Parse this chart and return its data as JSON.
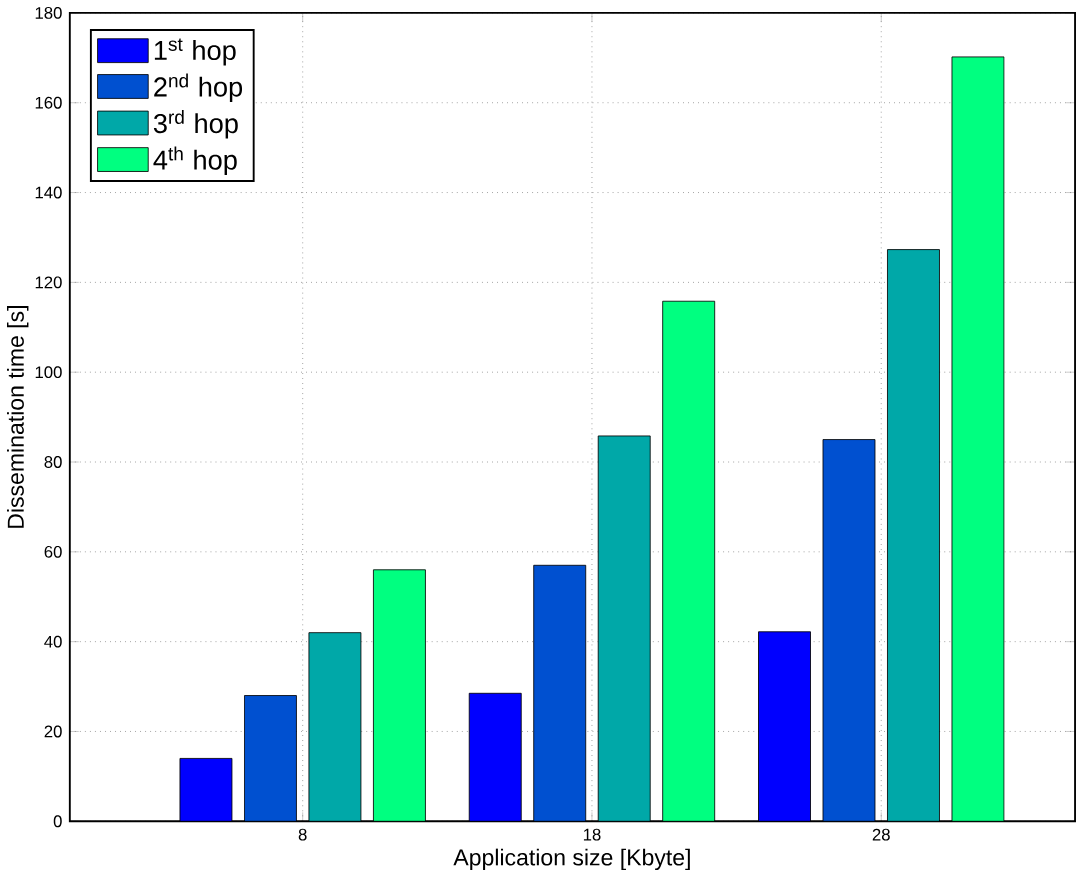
{
  "chart_data": {
    "type": "bar",
    "xlabel": "Application size [Kbyte]",
    "ylabel": "Dissemination time [s]",
    "categories": [
      "8",
      "18",
      "28"
    ],
    "series": [
      {
        "name": "1$^{st}$ hop",
        "color": "#0000ff",
        "values": [
          14,
          28.5,
          42.2
        ]
      },
      {
        "name": "2$^{nd}$ hop",
        "color": "#0050d0",
        "values": [
          28,
          57,
          85
        ]
      },
      {
        "name": "3$^{rd}$ hop",
        "color": "#00a8a8",
        "values": [
          42,
          85.8,
          127.3
        ]
      },
      {
        "name": "4$^{th}$ hop",
        "color": "#00ff80",
        "values": [
          56,
          115.8,
          170.2
        ]
      }
    ],
    "ylim": [
      0,
      180
    ],
    "yticks": [
      0,
      20,
      40,
      60,
      80,
      100,
      120,
      140,
      160,
      180
    ],
    "grid": true,
    "legend": "top left"
  }
}
